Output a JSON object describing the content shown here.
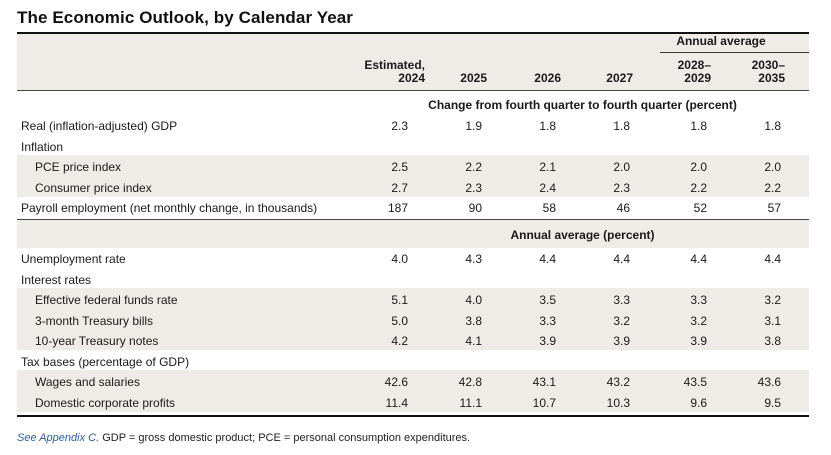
{
  "title": "The Economic Outlook, by Calendar Year",
  "header": {
    "annual_average": "Annual average",
    "columns": [
      {
        "line1": "Estimated,",
        "line2": "2024"
      },
      {
        "line1": "",
        "line2": "2025"
      },
      {
        "line1": "",
        "line2": "2026"
      },
      {
        "line1": "",
        "line2": "2027"
      },
      {
        "line1": "2028–",
        "line2": "2029"
      },
      {
        "line1": "2030–",
        "line2": "2035"
      }
    ]
  },
  "section1": {
    "label": "Change from fourth quarter to fourth quarter (percent)",
    "rows": [
      {
        "label": "Real (inflation-adjusted) GDP",
        "indent": false,
        "values": [
          "2.3",
          "1.9",
          "1.8",
          "1.8",
          "1.8",
          "1.8"
        ]
      },
      {
        "label": "Inflation",
        "indent": false,
        "values": [
          "",
          "",
          "",
          "",
          "",
          ""
        ]
      },
      {
        "label": "PCE price index",
        "indent": true,
        "values": [
          "2.5",
          "2.2",
          "2.1",
          "2.0",
          "2.0",
          "2.0"
        ]
      },
      {
        "label": "Consumer price index",
        "indent": true,
        "values": [
          "2.7",
          "2.3",
          "2.4",
          "2.3",
          "2.2",
          "2.2"
        ]
      },
      {
        "label": "Payroll employment (net monthly change, in thousands)",
        "indent": false,
        "values": [
          "187",
          "90",
          "58",
          "46",
          "52",
          "57"
        ]
      }
    ]
  },
  "section2": {
    "label": "Annual average (percent)",
    "rows": [
      {
        "label": "Unemployment rate",
        "indent": false,
        "values": [
          "4.0",
          "4.3",
          "4.4",
          "4.4",
          "4.4",
          "4.4"
        ]
      },
      {
        "label": "Interest rates",
        "indent": false,
        "values": [
          "",
          "",
          "",
          "",
          "",
          ""
        ]
      },
      {
        "label": "Effective federal funds rate",
        "indent": true,
        "values": [
          "5.1",
          "4.0",
          "3.5",
          "3.3",
          "3.3",
          "3.2"
        ]
      },
      {
        "label": "3-month Treasury bills",
        "indent": true,
        "values": [
          "5.0",
          "3.8",
          "3.3",
          "3.2",
          "3.2",
          "3.1"
        ]
      },
      {
        "label": "10-year Treasury notes",
        "indent": true,
        "values": [
          "4.2",
          "4.1",
          "3.9",
          "3.9",
          "3.9",
          "3.8"
        ]
      },
      {
        "label": "Tax bases (percentage of GDP)",
        "indent": false,
        "values": [
          "",
          "",
          "",
          "",
          "",
          ""
        ]
      },
      {
        "label": "Wages and salaries",
        "indent": true,
        "values": [
          "42.6",
          "42.8",
          "43.1",
          "43.2",
          "43.5",
          "43.6"
        ]
      },
      {
        "label": "Domestic corporate profits",
        "indent": true,
        "values": [
          "11.4",
          "11.1",
          "10.7",
          "10.3",
          "9.6",
          "9.5"
        ]
      }
    ]
  },
  "footnote": {
    "link_text": "See Appendix C.",
    "text": " GDP = gross domestic product; PCE = personal consumption expenditures."
  },
  "colors": {
    "band": "#efebe7",
    "link": "#2e5c9e"
  }
}
